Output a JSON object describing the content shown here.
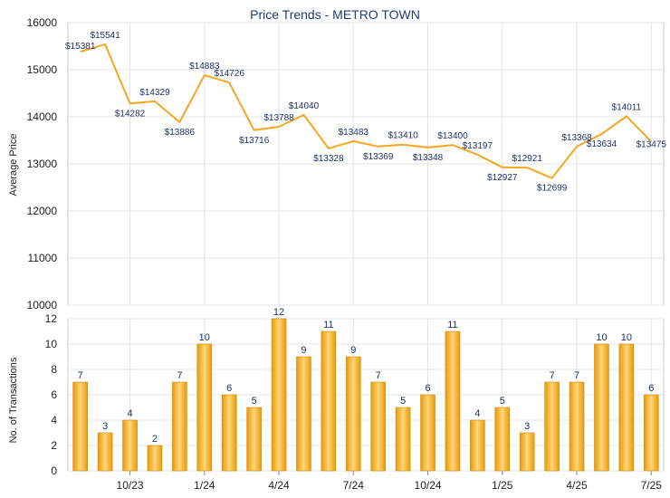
{
  "chart_data": [
    {
      "type": "line",
      "title": "Price Trends - METRO TOWN",
      "ylabel": "Average Price",
      "ylim": [
        10000,
        16000
      ],
      "yticks": [
        10000,
        11000,
        12000,
        13000,
        14000,
        15000,
        16000
      ],
      "grid": true,
      "color": "#f5a623",
      "series": [
        {
          "values": [
            15381,
            15541,
            14282,
            14329,
            13886,
            14883,
            14726,
            13716,
            13788,
            14040,
            13328,
            13483,
            13369,
            13410,
            13348,
            13400,
            13197,
            12927,
            12921,
            12699,
            13368,
            13634,
            14011,
            13475
          ],
          "labels": [
            "$15381",
            "$15541",
            "$14282",
            "$14329",
            "$13886",
            "$14883",
            "$14726",
            "$13716",
            "$13788",
            "$14040",
            "$13328",
            "$13483",
            "$13369",
            "$13410",
            "$13348",
            "$13400",
            "$13197",
            "$12927",
            "$12921",
            "$12699",
            "$13368",
            "$13634",
            "$14011",
            "$13475"
          ]
        }
      ]
    },
    {
      "type": "bar",
      "ylabel": "No. of Transactions",
      "ylim": [
        0,
        12
      ],
      "yticks": [
        0,
        2,
        4,
        6,
        8,
        10,
        12
      ],
      "grid": true,
      "color": "#f5a623",
      "x_tick_labels": [
        "10/23",
        "1/24",
        "4/24",
        "7/24",
        "10/24",
        "1/25",
        "4/25",
        "7/25"
      ],
      "x_tick_positions": [
        2,
        5,
        8,
        11,
        14,
        17,
        20,
        23
      ],
      "values": [
        7,
        3,
        4,
        2,
        7,
        10,
        6,
        5,
        12,
        9,
        11,
        9,
        7,
        5,
        6,
        11,
        4,
        5,
        3,
        7,
        7,
        10,
        10,
        6
      ]
    }
  ]
}
